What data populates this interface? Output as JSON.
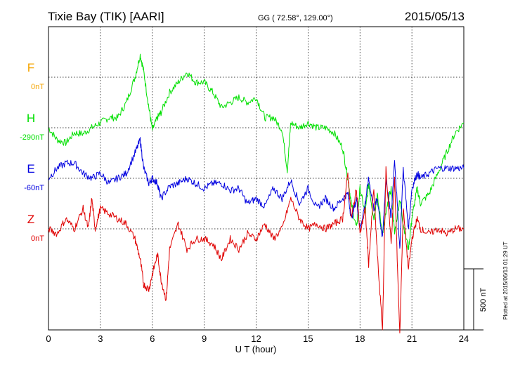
{
  "header": {
    "station": "Tixie Bay (TIK)  [AARI]",
    "coords": "GG ( 72.58°, 129.00°)",
    "date": "2015/05/13"
  },
  "plotted_note": "Plotted at 2015/06/13 01:29 UT",
  "chart_data": {
    "type": "line",
    "xlabel": "U T (hour)",
    "xlim": [
      0,
      24
    ],
    "xticks": [
      "0",
      "3",
      "6",
      "9",
      "12",
      "15",
      "18",
      "21",
      "24"
    ],
    "scale_bar_label": "500 nT",
    "ylim_nT": [
      -1000,
      2000
    ],
    "colors": {
      "F": "#f5a400",
      "H": "#00e000",
      "E": "#0000e0",
      "Z": "#e00000"
    },
    "series": [
      {
        "name": "F",
        "baseline_label": "0nT",
        "baseline_nT": 1500,
        "x": [],
        "y": []
      },
      {
        "name": "H",
        "baseline_label": "-290nT",
        "baseline_nT": 1000,
        "x": [
          0,
          0.5,
          1,
          1.5,
          2,
          2.5,
          3,
          3.5,
          4,
          4.5,
          5,
          5.3,
          5.5,
          5.8,
          6,
          6.3,
          6.5,
          7,
          7.5,
          8,
          8.5,
          9,
          9.5,
          10,
          10.5,
          11,
          11.5,
          12,
          12.5,
          13,
          13.5,
          13.8,
          14,
          14.5,
          15,
          15.5,
          16,
          16.5,
          17,
          17.3,
          17.5,
          17.8,
          18,
          18.3,
          18.5,
          18.8,
          19,
          19.3,
          19.5,
          19.8,
          20,
          20.3,
          20.5,
          20.8,
          21,
          21.3,
          21.5,
          22,
          22.5,
          23,
          23.5,
          24
        ],
        "y": [
          1000,
          880,
          850,
          950,
          940,
          1000,
          1050,
          1100,
          1100,
          1250,
          1500,
          1720,
          1560,
          1200,
          980,
          1100,
          1150,
          1350,
          1450,
          1550,
          1450,
          1450,
          1350,
          1200,
          1250,
          1300,
          1250,
          1300,
          1100,
          1100,
          980,
          580,
          1050,
          1000,
          1050,
          1000,
          1000,
          950,
          800,
          500,
          250,
          0,
          400,
          150,
          450,
          100,
          330,
          -50,
          150,
          400,
          -50,
          300,
          50,
          -200,
          100,
          400,
          250,
          350,
          550,
          750,
          950,
          1050
        ]
      },
      {
        "name": "E",
        "baseline_label": "-60nT",
        "baseline_nT": 500,
        "x": [
          0,
          0.5,
          1,
          1.5,
          2,
          2.5,
          3,
          3.5,
          4,
          4.5,
          5,
          5.3,
          5.5,
          5.8,
          6,
          6.3,
          6.5,
          7,
          7.5,
          8,
          8.5,
          9,
          9.5,
          10,
          10.5,
          11,
          11.5,
          12,
          12.5,
          13,
          13.5,
          14,
          14.5,
          15,
          15.5,
          16,
          16.5,
          17,
          17.3,
          17.5,
          17.8,
          18,
          18.3,
          18.5,
          18.8,
          19,
          19.3,
          19.5,
          19.8,
          20,
          20.3,
          20.5,
          20.8,
          21,
          21.3,
          21.5,
          22,
          22.5,
          23,
          23.5,
          24
        ],
        "y": [
          500,
          600,
          650,
          650,
          550,
          500,
          550,
          450,
          500,
          550,
          750,
          880,
          600,
          450,
          500,
          450,
          300,
          420,
          450,
          500,
          450,
          400,
          450,
          450,
          380,
          400,
          250,
          300,
          220,
          400,
          300,
          480,
          250,
          400,
          200,
          300,
          200,
          300,
          350,
          100,
          300,
          0,
          250,
          500,
          200,
          300,
          -100,
          500,
          100,
          700,
          -200,
          600,
          0,
          400,
          550,
          500,
          550,
          600,
          600,
          600,
          600
        ]
      },
      {
        "name": "Z",
        "baseline_label": "0nT",
        "baseline_nT": 0,
        "x": [
          0,
          0.5,
          1,
          1.5,
          2,
          2.3,
          2.5,
          2.7,
          3,
          3.5,
          4,
          4.5,
          5,
          5.3,
          5.5,
          5.8,
          6,
          6.3,
          6.5,
          6.8,
          7,
          7.5,
          8,
          8.5,
          9,
          9.5,
          10,
          10.5,
          11,
          11.5,
          12,
          12.5,
          13,
          13.5,
          14,
          14.5,
          15,
          15.5,
          16,
          16.5,
          17,
          17.3,
          17.5,
          17.8,
          18,
          18.3,
          18.5,
          18.8,
          19,
          19.3,
          19.5,
          19.8,
          20,
          20.3,
          20.5,
          20.8,
          21,
          21.3,
          21.5,
          22,
          22.5,
          23,
          23.5,
          24
        ],
        "y": [
          0,
          -50,
          100,
          0,
          200,
          0,
          300,
          0,
          200,
          150,
          100,
          50,
          -100,
          -300,
          -550,
          -600,
          -450,
          -250,
          -500,
          -700,
          -200,
          50,
          -200,
          -100,
          -100,
          -150,
          -300,
          -100,
          -200,
          -50,
          -100,
          50,
          -100,
          0,
          300,
          100,
          0,
          50,
          0,
          50,
          100,
          550,
          100,
          400,
          -50,
          200,
          -350,
          400,
          -250,
          -1000,
          600,
          -150,
          500,
          -1050,
          200,
          -400,
          -100,
          100,
          0,
          -50,
          0,
          -50,
          0,
          0
        ]
      }
    ]
  }
}
